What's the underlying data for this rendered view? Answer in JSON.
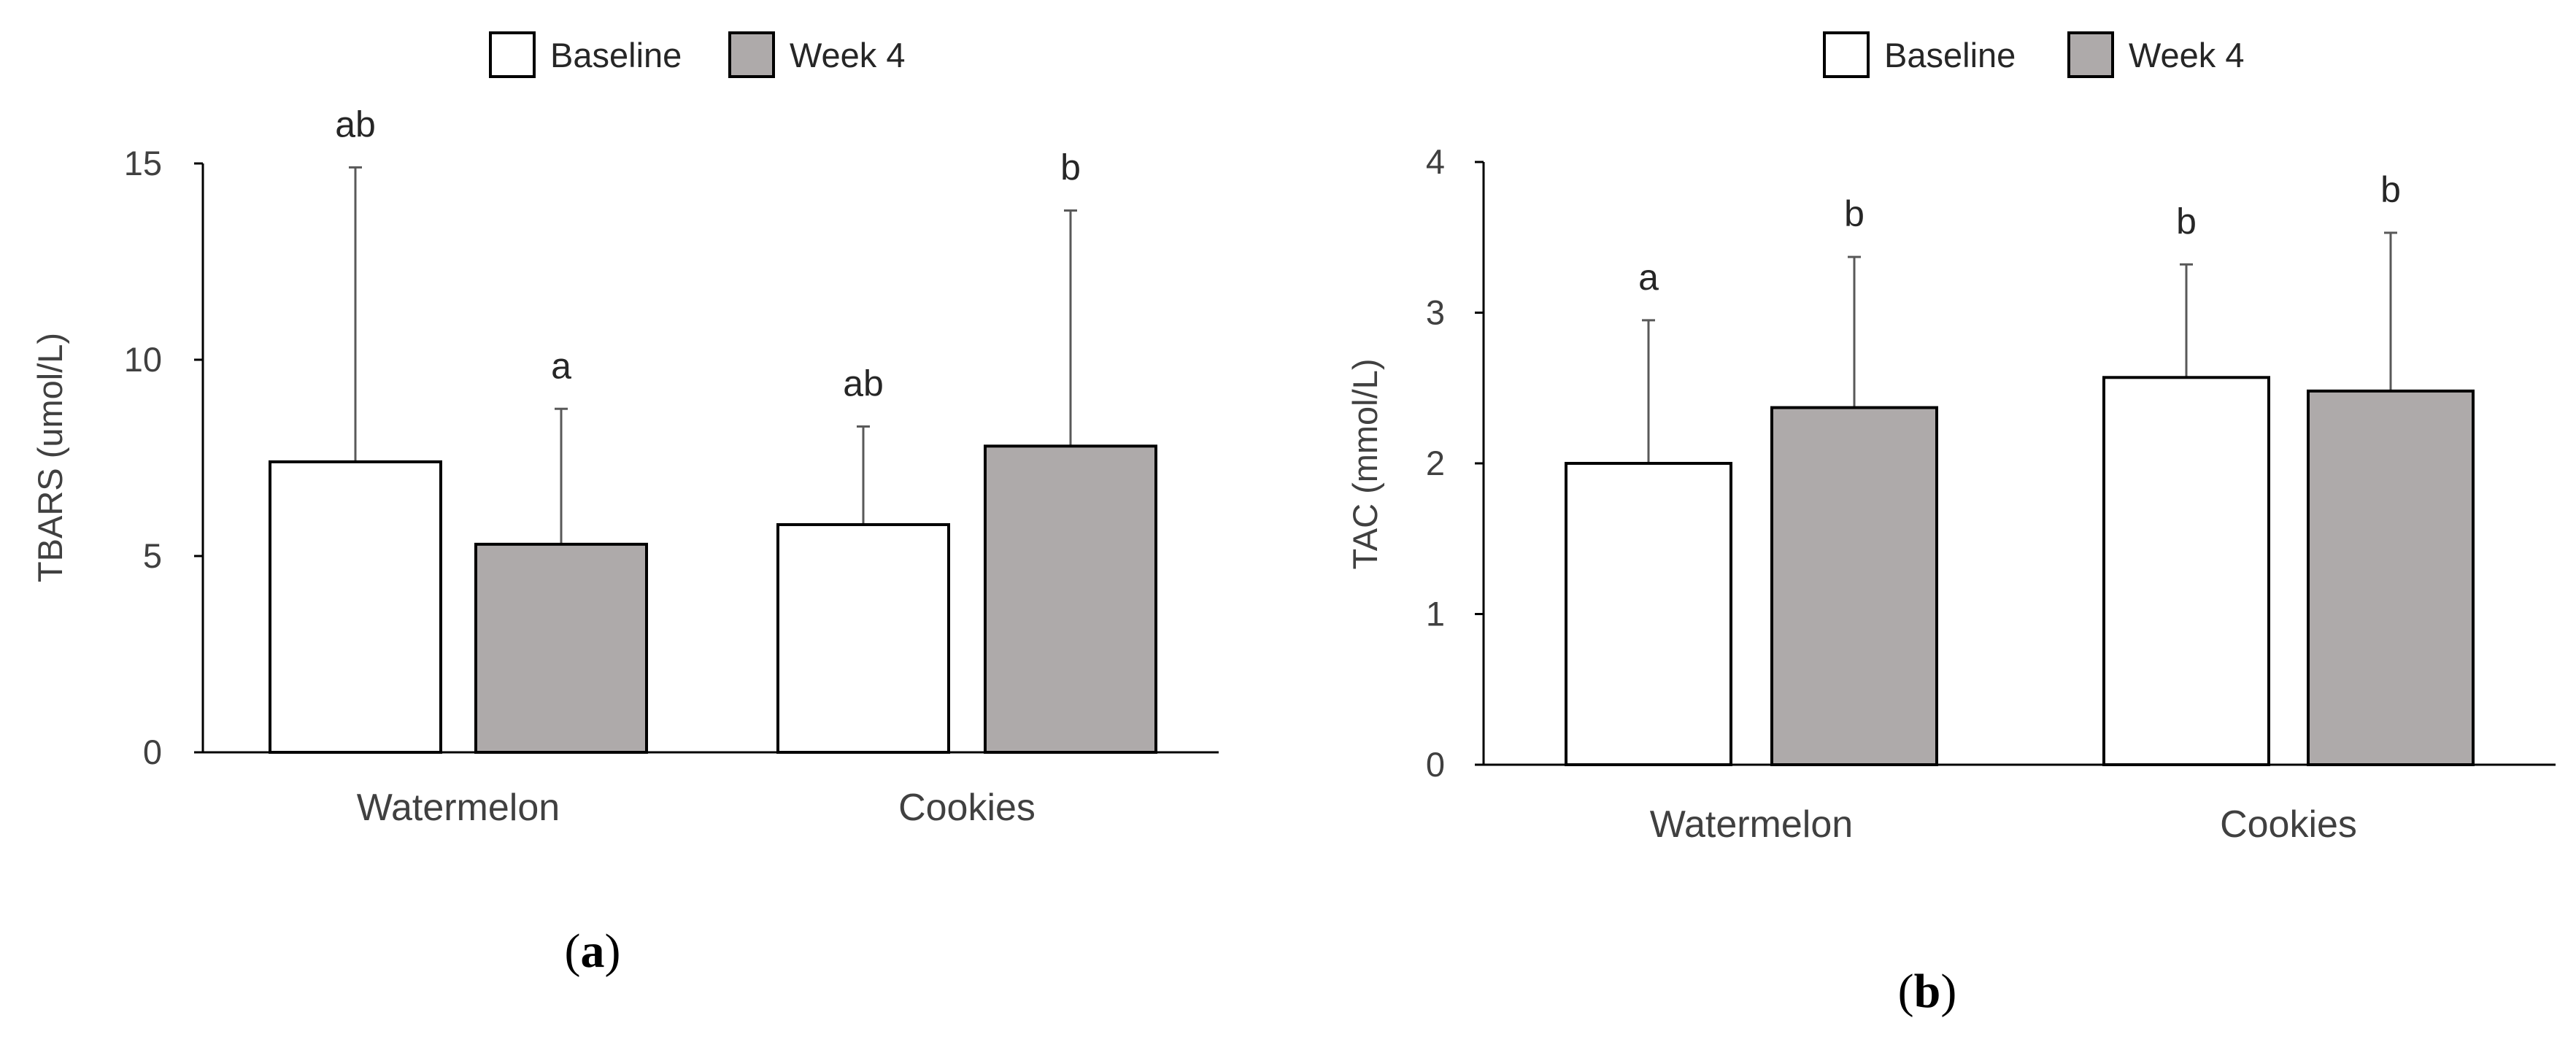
{
  "chart_data": [
    {
      "type": "bar",
      "panel_label": {
        "open": "(",
        "letter": "a",
        "close": ")"
      },
      "categories": [
        "Watermelon",
        "Cookies"
      ],
      "series": [
        {
          "name": "Baseline",
          "color": "#ffffff",
          "values": [
            7.4,
            5.8
          ],
          "errors": [
            7.5,
            2.5
          ],
          "labels": [
            "ab",
            "ab"
          ]
        },
        {
          "name": "Week 4",
          "color": "#aeaaaa",
          "values": [
            5.3,
            7.8
          ],
          "errors": [
            3.45,
            6.0
          ],
          "labels": [
            "a",
            "b"
          ]
        }
      ],
      "ylabel": "TBARS (umol/L)",
      "ylim": [
        0,
        15
      ],
      "yticks": [
        0,
        5,
        10,
        15
      ],
      "legend": "top-center"
    },
    {
      "type": "bar",
      "panel_label": {
        "open": "(",
        "letter": "b",
        "close": ")"
      },
      "categories": [
        "Watermelon",
        "Cookies"
      ],
      "series": [
        {
          "name": "Baseline",
          "color": "#ffffff",
          "values": [
            2.0,
            2.57
          ],
          "errors": [
            0.95,
            0.75
          ],
          "labels": [
            "a",
            "b"
          ]
        },
        {
          "name": "Week 4",
          "color": "#aeaaaa",
          "values": [
            2.37,
            2.48
          ],
          "errors": [
            1.0,
            1.05
          ],
          "labels": [
            "b",
            "b"
          ]
        }
      ],
      "ylabel": "TAC (mmol/L)",
      "ylim": [
        0,
        4
      ],
      "yticks": [
        0,
        1,
        2,
        3,
        4
      ],
      "legend": "top-center"
    }
  ]
}
